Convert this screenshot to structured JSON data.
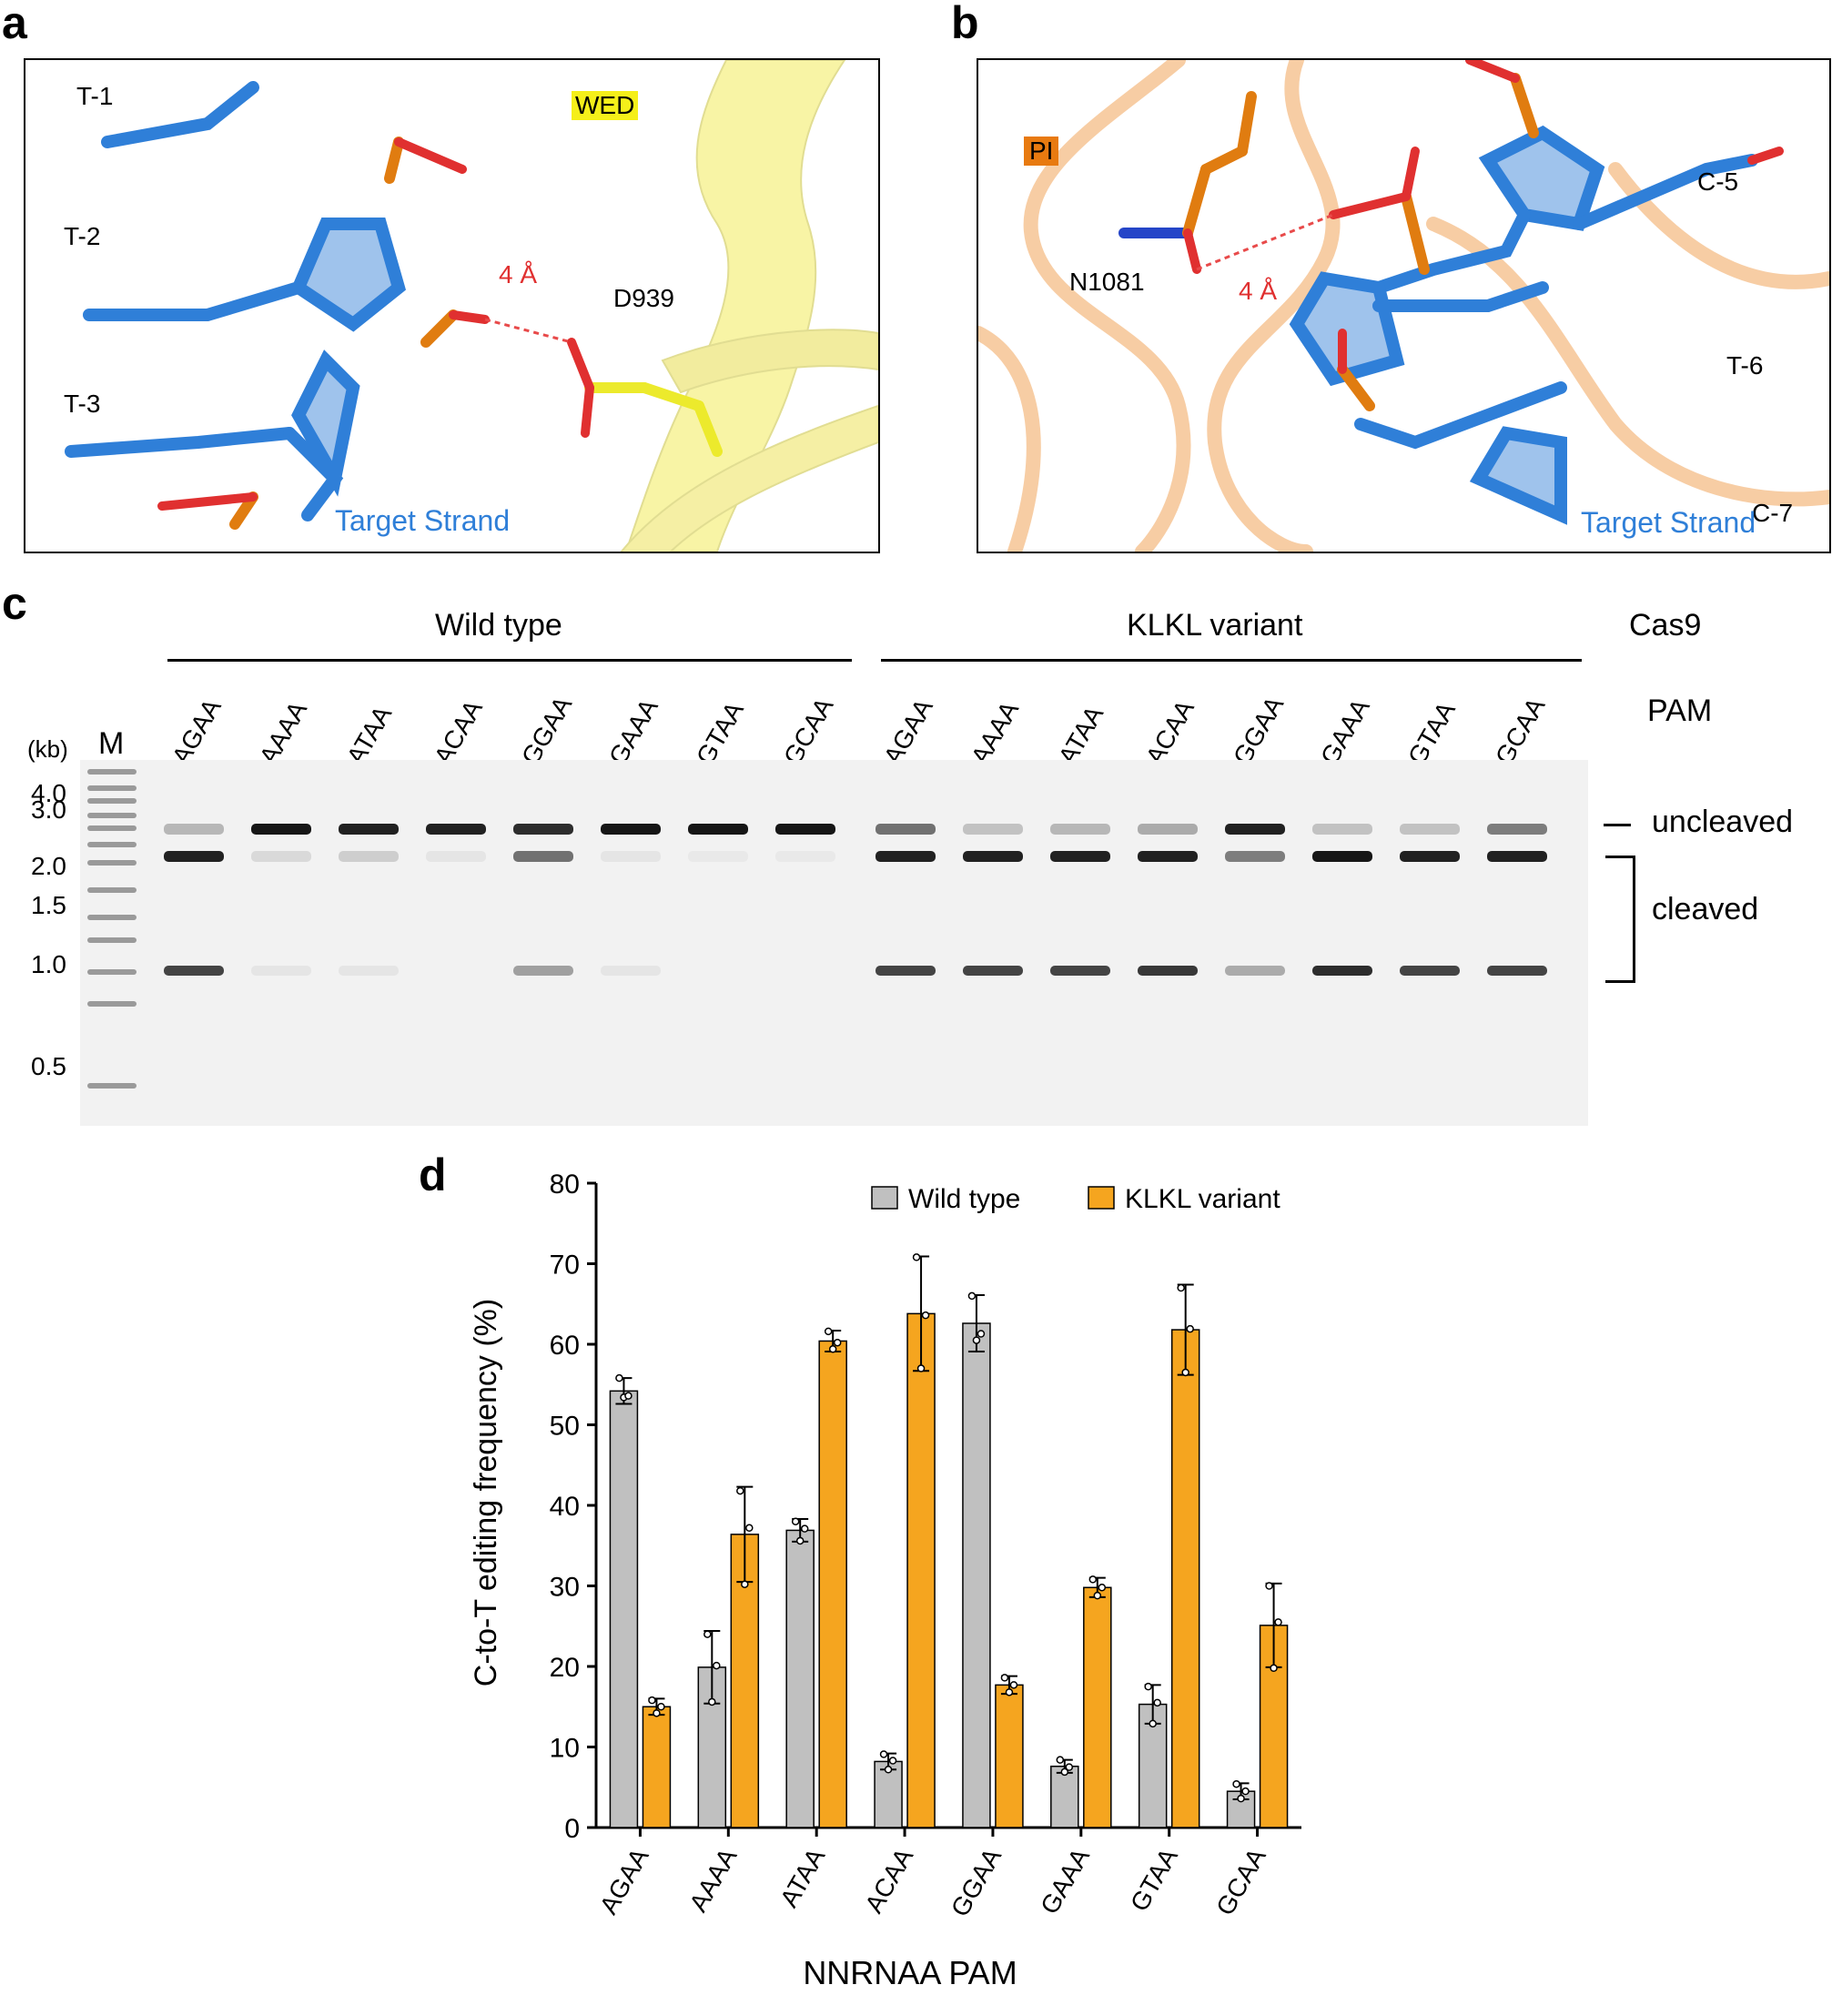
{
  "panel_a": {
    "letter": "a",
    "domain_label": "WED",
    "nucleotides": [
      "T-1",
      "T-2",
      "T-3"
    ],
    "distance": "4 Å",
    "residue": "D939",
    "strand": "Target Strand"
  },
  "panel_b": {
    "letter": "b",
    "domain_label": "PI",
    "nucleotides": [
      "C-5",
      "T-6",
      "C-7"
    ],
    "distance": "4 Å",
    "residue": "N1081",
    "strand": "Target Strand"
  },
  "panel_c": {
    "letter": "c",
    "group_wt": "Wild type",
    "group_klkl": "KLKL variant",
    "cas9_label": "Cas9",
    "pam_label": "PAM",
    "kb_label": "(kb)",
    "marker_label": "M",
    "lanes": [
      "AGAA",
      "AAAA",
      "ATAA",
      "ACAA",
      "GGAA",
      "GAAA",
      "GTAA",
      "GCAA"
    ],
    "ladder_labels": [
      "4.0",
      "3.0",
      "2.0",
      "1.5",
      "1.0",
      "0.5"
    ],
    "uncleaved_label": "uncleaved",
    "cleaved_label": "cleaved"
  },
  "panel_d": {
    "letter": "d"
  },
  "chart_data": {
    "type": "bar",
    "ylabel": "C-to-T editing frequency (%)",
    "xlabel": "NNRNAA PAM",
    "ylim": [
      0,
      80
    ],
    "yticks": [
      0,
      10,
      20,
      30,
      40,
      50,
      60,
      70,
      80
    ],
    "categories": [
      "AGAA",
      "AAAA",
      "ATAA",
      "ACAA",
      "GGAA",
      "GAAA",
      "GTAA",
      "GCAA"
    ],
    "legend_position": "top",
    "series": [
      {
        "name": "Wild type",
        "color": "#c0c0c0",
        "values": [
          54.2,
          19.9,
          36.9,
          8.2,
          62.6,
          7.6,
          15.3,
          4.5
        ],
        "errors": [
          1.6,
          4.5,
          1.4,
          1.0,
          3.5,
          0.8,
          2.4,
          1.0
        ],
        "points": [
          [
            55.8,
            53.4,
            53.6
          ],
          [
            24.0,
            15.6,
            20.1
          ],
          [
            38.0,
            35.6,
            37.1
          ],
          [
            9.1,
            7.2,
            8.3
          ],
          [
            66.0,
            60.5,
            61.3
          ],
          [
            8.4,
            6.9,
            7.5
          ],
          [
            17.5,
            12.9,
            15.5
          ],
          [
            5.4,
            3.6,
            4.5
          ]
        ]
      },
      {
        "name": "KLKL variant",
        "color": "#f5a51f",
        "values": [
          15.0,
          36.4,
          60.4,
          63.8,
          17.7,
          29.8,
          61.8,
          25.1
        ],
        "errors": [
          1.0,
          5.9,
          1.3,
          7.1,
          1.1,
          1.2,
          5.6,
          5.2
        ],
        "points": [
          [
            15.8,
            14.2,
            15.0
          ],
          [
            41.8,
            30.2,
            37.2
          ],
          [
            61.6,
            59.4,
            60.2
          ],
          [
            70.8,
            57.0,
            63.6
          ],
          [
            18.6,
            16.8,
            17.7
          ],
          [
            30.8,
            28.8,
            29.8
          ],
          [
            67.0,
            56.5,
            61.9
          ],
          [
            30.0,
            19.8,
            25.5
          ]
        ]
      }
    ]
  }
}
